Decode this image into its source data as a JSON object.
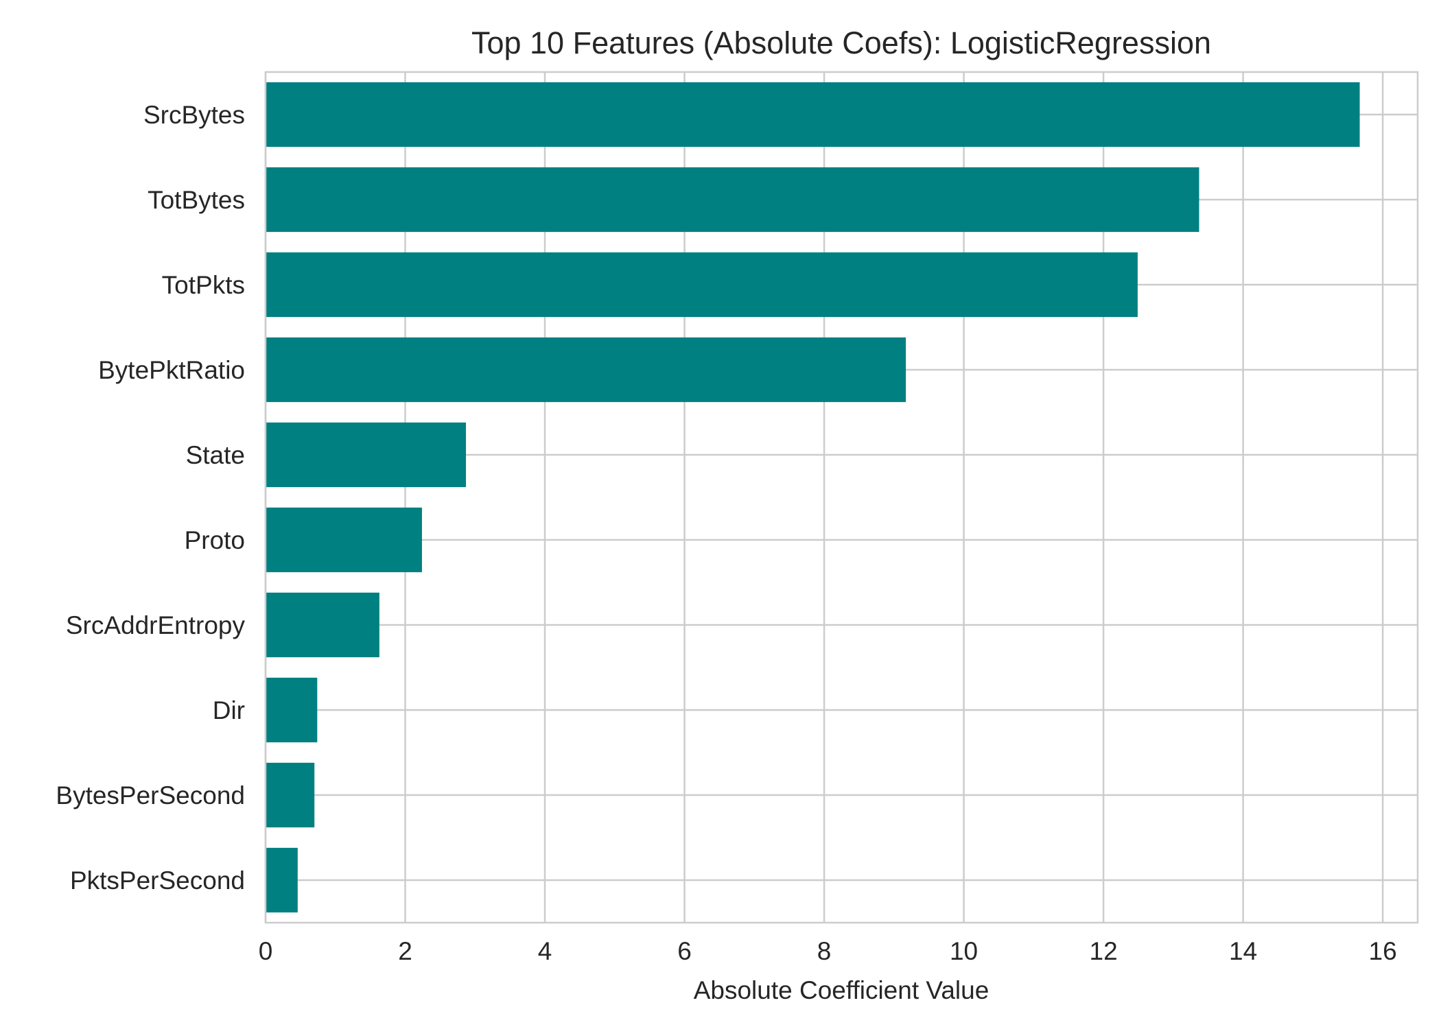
{
  "chart_data": {
    "type": "bar",
    "orientation": "horizontal",
    "title": "Top 10 Features (Absolute Coefs): LogisticRegression",
    "xlabel": "Absolute Coefficient Value",
    "ylabel": "",
    "categories": [
      "SrcBytes",
      "TotBytes",
      "TotPkts",
      "BytePktRatio",
      "State",
      "Proto",
      "SrcAddrEntropy",
      "Dir",
      "BytesPerSecond",
      "PktsPerSecond"
    ],
    "values": [
      15.67,
      13.37,
      12.49,
      9.17,
      2.87,
      2.24,
      1.63,
      0.74,
      0.7,
      0.46
    ],
    "xlim": [
      0,
      16.5
    ],
    "xticks": [
      0,
      2,
      4,
      6,
      8,
      10,
      12,
      14,
      16
    ],
    "xtick_labels": [
      "0",
      "2",
      "4",
      "6",
      "8",
      "10",
      "12",
      "14",
      "16"
    ],
    "grid": true,
    "legend": "none",
    "colors": {
      "bar": "#008080",
      "grid": "#cccccc",
      "axes_edge": "#cccccc",
      "text": "#262626",
      "background": "#ffffff"
    }
  }
}
